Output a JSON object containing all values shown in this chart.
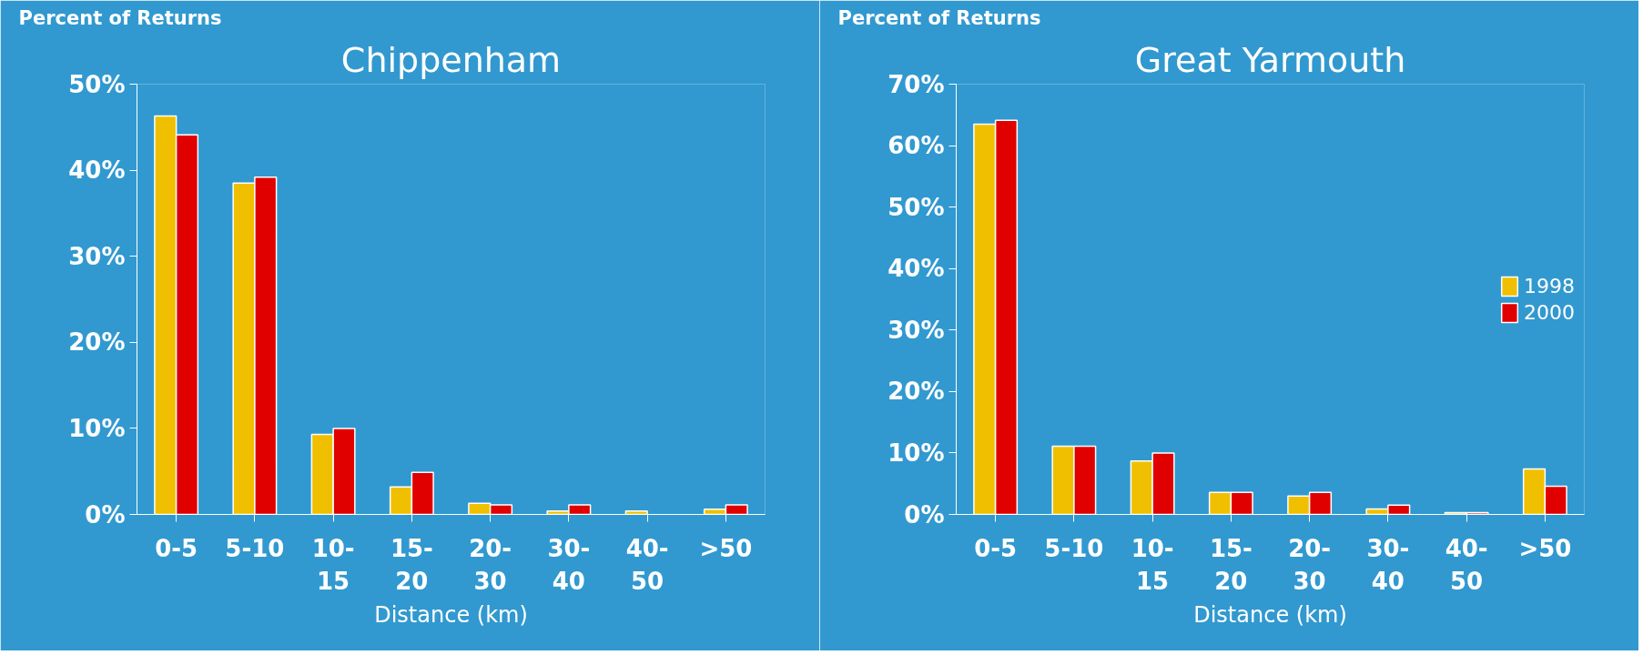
{
  "chart_data": [
    {
      "type": "bar",
      "title": "Chippenham",
      "ylabel": "Percent of Returns",
      "xlabel": "Distance (km)",
      "categories": [
        "0-5",
        "5-10",
        "10-15",
        "15-20",
        "20-30",
        "30-40",
        "40-50",
        ">50"
      ],
      "series": [
        {
          "color": "#f0c000",
          "values": [
            46.3,
            38.5,
            9.3,
            3.2,
            1.3,
            0.4,
            0.4,
            0.6
          ]
        },
        {
          "color": "#e00000",
          "values": [
            44.1,
            39.2,
            10.0,
            4.9,
            1.1,
            1.1,
            null,
            1.1
          ]
        }
      ],
      "ylim": [
        0,
        50
      ],
      "yticks": [
        {
          "value": 0,
          "label": "0%"
        },
        {
          "value": 10,
          "label": "10%"
        },
        {
          "value": 20,
          "label": "20%"
        },
        {
          "value": 30,
          "label": "30%"
        },
        {
          "value": 40,
          "label": "40%"
        },
        {
          "value": 50,
          "label": "50%"
        }
      ],
      "grid": false
    },
    {
      "type": "bar",
      "title": "Great Yarmouth",
      "ylabel": "Percent of Returns",
      "xlabel": "Distance (km)",
      "categories": [
        "0-5",
        "5-10",
        "10-15",
        "15-20",
        "20-30",
        "30-40",
        "40-50",
        ">50"
      ],
      "series": [
        {
          "name": "1998",
          "color": "#f0c000",
          "values": [
            63.5,
            11.1,
            8.7,
            3.6,
            3.0,
            0.9,
            0.3,
            7.4
          ]
        },
        {
          "name": "2000",
          "color": "#e00000",
          "values": [
            64.1,
            11.1,
            10.0,
            3.6,
            3.6,
            1.5,
            0.3,
            4.6
          ]
        }
      ],
      "ylim": [
        0,
        70
      ],
      "yticks": [
        {
          "value": 0,
          "label": "0%"
        },
        {
          "value": 10,
          "label": "10%"
        },
        {
          "value": 20,
          "label": "20%"
        },
        {
          "value": 30,
          "label": "30%"
        },
        {
          "value": 40,
          "label": "40%"
        },
        {
          "value": 50,
          "label": "50%"
        },
        {
          "value": 60,
          "label": "60%"
        },
        {
          "value": 70,
          "label": "70%"
        }
      ],
      "grid": false,
      "legend": "right"
    }
  ]
}
